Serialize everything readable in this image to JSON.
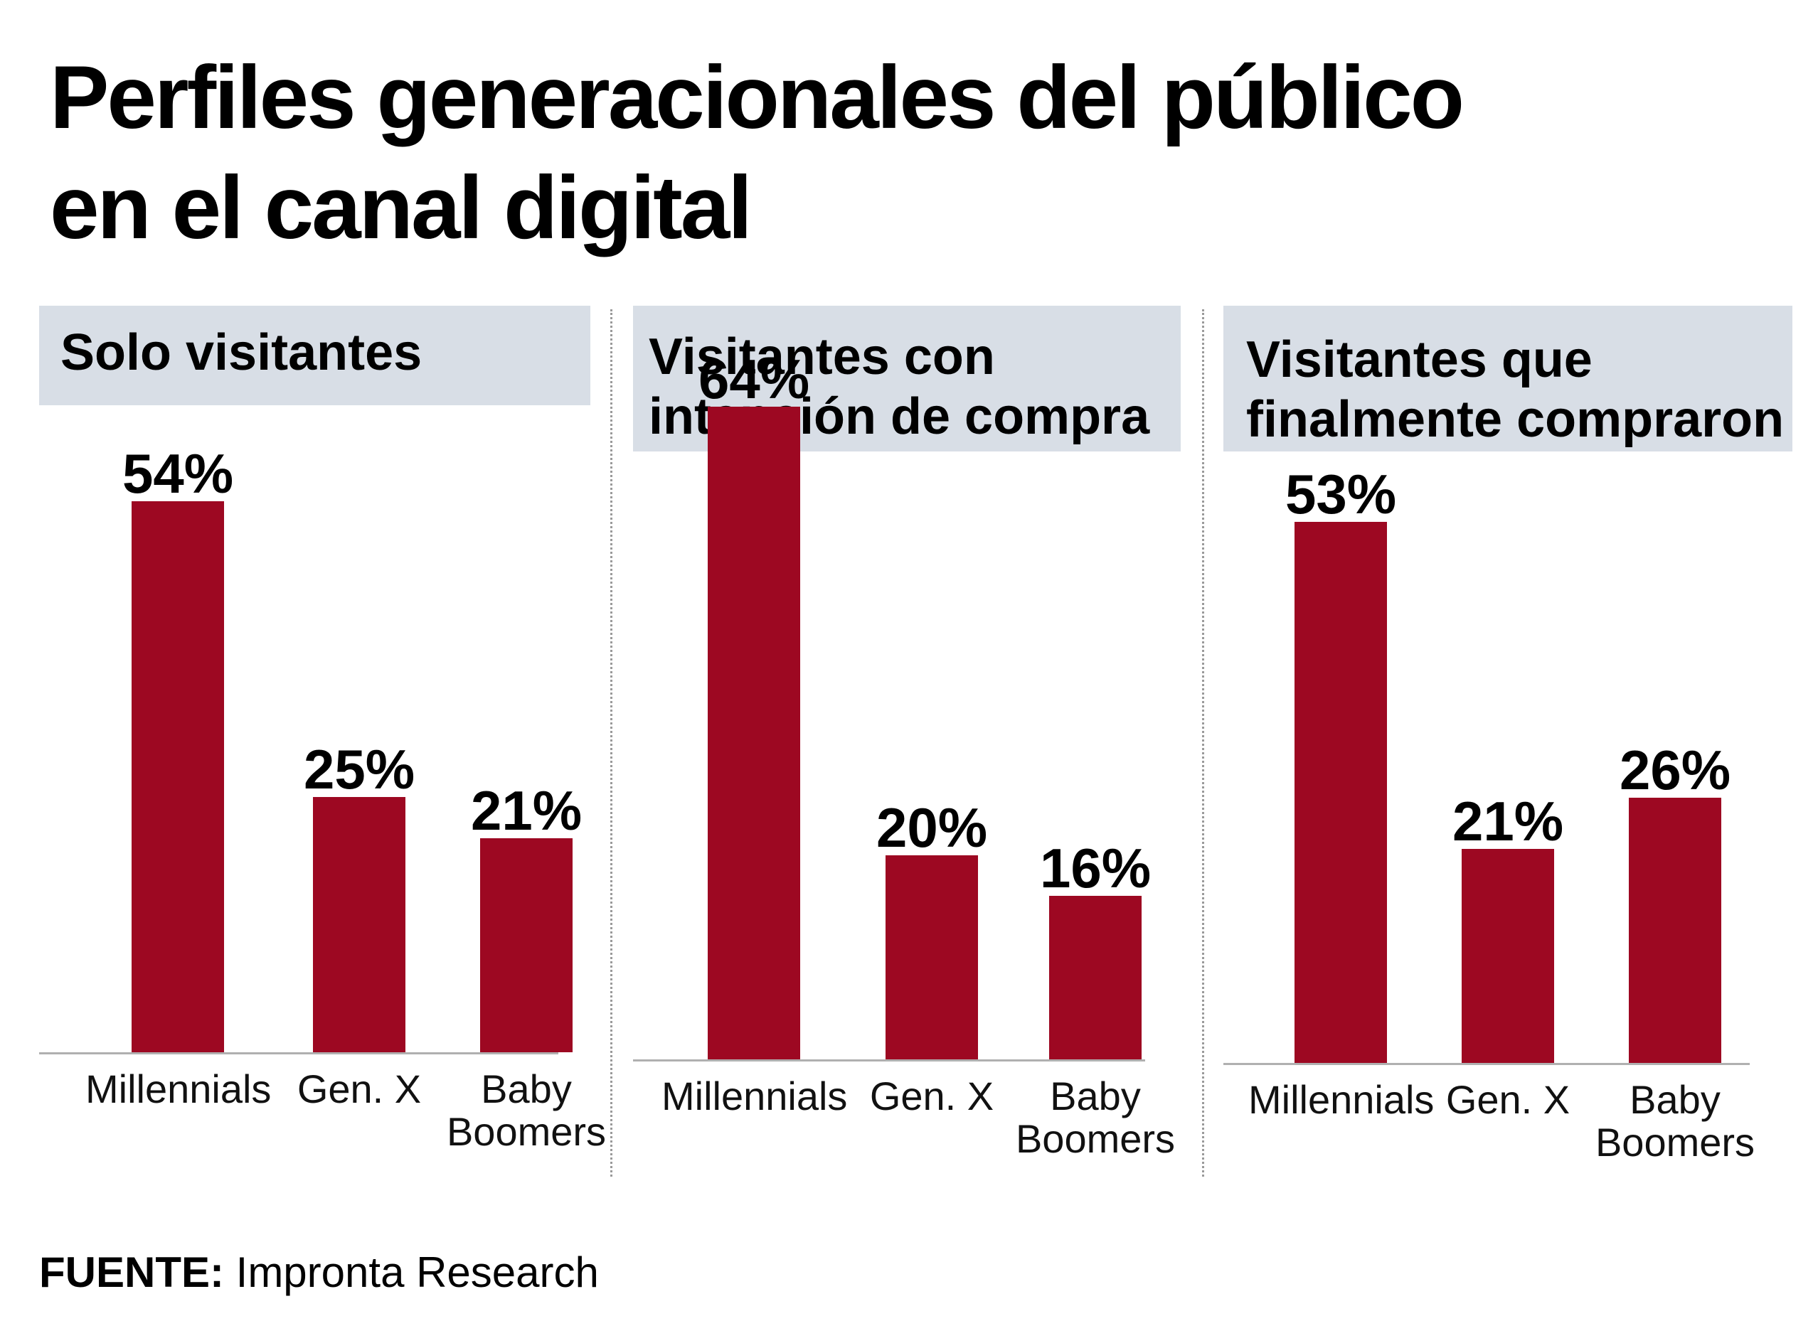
{
  "title": {
    "line1": "Perfiles generacionales del público",
    "line2": "en el canal digital"
  },
  "footer": {
    "key": "FUENTE:",
    "value": " Impronta Research"
  },
  "colors": {
    "bar": "#9d0822",
    "header_bg": "#d8dee6"
  },
  "chart_data": [
    {
      "type": "bar",
      "title": "Solo visitantes",
      "categories": [
        "Millennials",
        "Gen. X",
        "Baby Boomers"
      ],
      "category_lines": [
        [
          "Millennials"
        ],
        [
          "Gen. X"
        ],
        [
          "Baby",
          "Boomers"
        ]
      ],
      "values": [
        54,
        25,
        21
      ],
      "value_labels": [
        "54%",
        "25%",
        "21%"
      ],
      "ylim": [
        0,
        100
      ],
      "unit": "%"
    },
    {
      "type": "bar",
      "title": "Visitantes con intención de compra",
      "title_lines": [
        "Visitantes con",
        "intención de compra"
      ],
      "categories": [
        "Millennials",
        "Gen. X",
        "Baby Boomers"
      ],
      "category_lines": [
        [
          "Millennials"
        ],
        [
          "Gen. X"
        ],
        [
          "Baby",
          "Boomers"
        ]
      ],
      "values": [
        64,
        20,
        16
      ],
      "value_labels": [
        "64%",
        "20%",
        "16%"
      ],
      "ylim": [
        0,
        100
      ],
      "unit": "%"
    },
    {
      "type": "bar",
      "title": "Visitantes que finalmente compraron",
      "title_lines": [
        "Visitantes que",
        "finalmente compraron"
      ],
      "categories": [
        "Millennials",
        "Gen. X",
        "Baby Boomers"
      ],
      "category_lines": [
        [
          "Millennials"
        ],
        [
          "Gen. X"
        ],
        [
          "Baby",
          "Boomers"
        ]
      ],
      "values": [
        53,
        21,
        26
      ],
      "value_labels": [
        "53%",
        "21%",
        "26%"
      ],
      "ylim": [
        0,
        100
      ],
      "unit": "%"
    }
  ]
}
